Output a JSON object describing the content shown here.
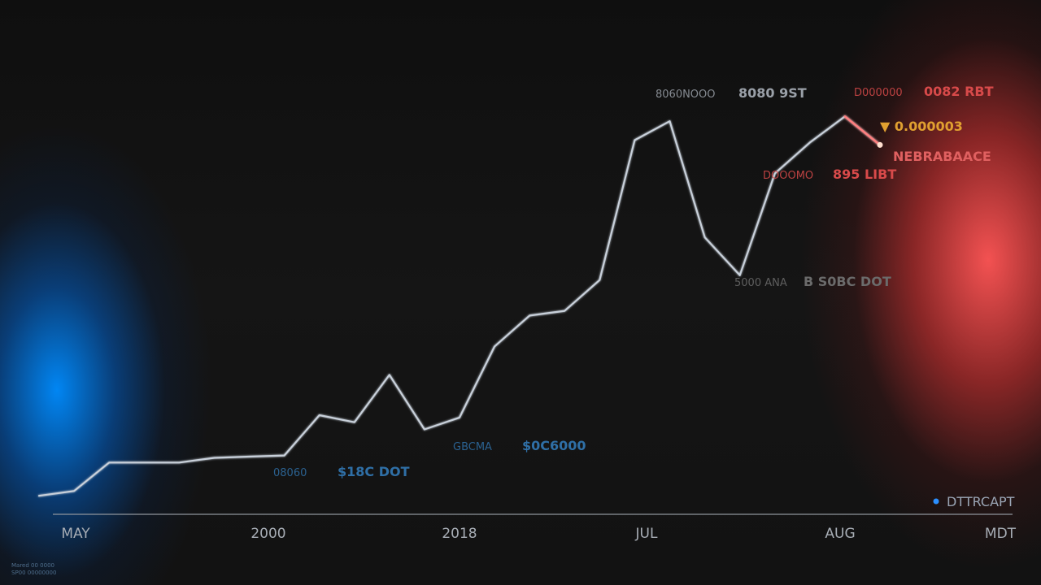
{
  "chart_data": {
    "type": "line",
    "title": "",
    "xlabel": "",
    "ylabel": "",
    "x_tick_labels": [
      "MAY",
      "2000",
      "2018",
      "JUL",
      "AUG",
      "MDT"
    ],
    "grid": false,
    "series": [
      {
        "color": "#c8d0da",
        "values": [
          2,
          4,
          16,
          16,
          16,
          18,
          18.5,
          19,
          36,
          33,
          53,
          30,
          35,
          65,
          78,
          80,
          93,
          152,
          160,
          111,
          95,
          138,
          151,
          162,
          150
        ]
      },
      {
        "color": "#ff7f7f",
        "values": [
          null,
          null,
          null,
          null,
          null,
          null,
          null,
          null,
          null,
          null,
          null,
          null,
          null,
          null,
          null,
          null,
          null,
          null,
          null,
          null,
          null,
          null,
          null,
          162,
          150
        ]
      }
    ],
    "ylim": [
      0,
      170
    ],
    "annotations": [
      {
        "label": "08060",
        "value": "$18C DOT",
        "color": "#2f6fa6"
      },
      {
        "label": "GBCMA",
        "value": "$0C6000",
        "color": "#2f6fa6"
      },
      {
        "label": "8060NOOO",
        "value": "8080 9ST",
        "color": "#9aa0a8"
      },
      {
        "label": "5000 ANA",
        "value": "B S0BC DOT",
        "color": "#6b6b6b"
      },
      {
        "label": "DOOOMO",
        "value": "895 LIBT",
        "color": "#d84a4a"
      },
      {
        "label": "D000000",
        "value": "0082 RBT",
        "color": "#d84a4a"
      },
      {
        "label": "",
        "value": "▼ 0.000003",
        "color": "#e0a030"
      },
      {
        "label": "",
        "value": "NEBRABAACE",
        "color": "#e06060"
      }
    ],
    "legend": {
      "text": "DTTRCAPT",
      "dot_color": "#2b8fff",
      "position": "bottom-right"
    }
  },
  "footer": {
    "line1": "Mared 00 0000",
    "line2": "SP00 00000000"
  }
}
